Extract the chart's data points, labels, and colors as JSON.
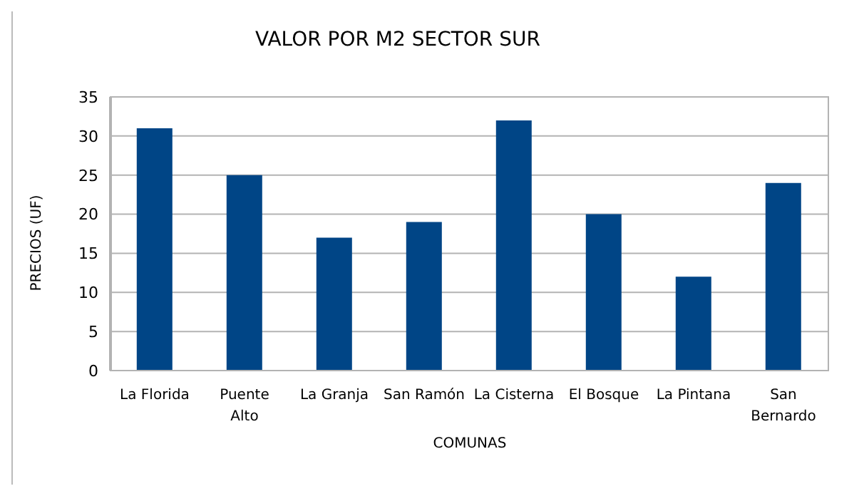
{
  "chart_data": {
    "type": "bar",
    "title": "VALOR POR M2 SECTOR SUR",
    "xlabel": "COMUNAS",
    "ylabel": "PRECIOS (UF)",
    "categories": [
      "La Florida",
      "Puente Alto",
      "La Granja",
      "San Ramón",
      "La Cisterna",
      "El Bosque",
      "La Pintana",
      "San Bernardo"
    ],
    "values": [
      31,
      25,
      17,
      19,
      32,
      20,
      12,
      24
    ],
    "color": "#004586",
    "ylim": [
      0,
      35
    ],
    "yticks": [
      0,
      5,
      10,
      15,
      20,
      25,
      30,
      35
    ],
    "grid": "y",
    "legend": false
  }
}
